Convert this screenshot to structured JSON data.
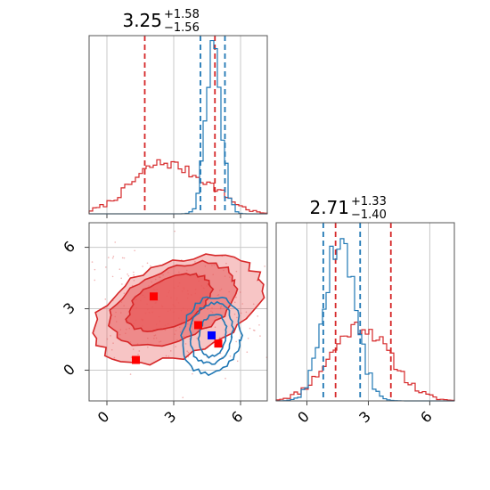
{
  "chart_data": {
    "type": "corner",
    "colors": {
      "red": "#d62728",
      "blue": "#1f77b4",
      "red_fill": "#e8595a",
      "marker_blue": "#0000ff",
      "marker_red": "#ff0000"
    },
    "tick_values": [
      0,
      3,
      6
    ],
    "tick_labels": [
      "0",
      "3",
      "6"
    ],
    "panels": [
      {
        "id": "param1-marginal",
        "title": {
          "value": "3.25",
          "plus": "+1.58",
          "minus": "−1.56"
        },
        "x_range": [
          -0.8,
          7.2
        ],
        "grid": true,
        "series": [
          {
            "color": "red",
            "kind": "histogram",
            "hist": {
              "mode": "mixture",
              "components": [
                {
                  "mu": 2.5,
                  "sigma": 1.4,
                  "weight": 0.78
                },
                {
                  "mu": 4.8,
                  "sigma": 0.9,
                  "weight": 0.22
                }
              ],
              "peak": 0.285,
              "seed": 7
            },
            "quantiles": [
              1.7,
              4.85
            ]
          },
          {
            "color": "blue",
            "kind": "histogram",
            "hist": {
              "mode": "mixture",
              "components": [
                {
                  "mu": 4.8,
                  "sigma": 0.35,
                  "weight": 1.0
                }
              ],
              "peak": 0.9,
              "seed": 3
            },
            "quantiles": [
              4.2,
              5.3
            ]
          }
        ]
      },
      {
        "id": "param2-marginal",
        "title": {
          "value": "2.71",
          "plus": "+1.33",
          "minus": "−1.40"
        },
        "x_range": [
          -1.5,
          7.2
        ],
        "grid": true,
        "series": [
          {
            "color": "red",
            "kind": "histogram",
            "hist": {
              "mode": "mixture",
              "components": [
                {
                  "mu": 2.6,
                  "sigma": 1.45,
                  "weight": 1.0
                }
              ],
              "peak": 0.42,
              "seed": 11
            },
            "quantiles": [
              1.4,
              4.1
            ]
          },
          {
            "color": "blue",
            "kind": "histogram",
            "hist": {
              "mode": "mixture",
              "components": [
                {
                  "mu": 1.6,
                  "sigma": 0.75,
                  "weight": 1.0
                }
              ],
              "peak": 0.92,
              "seed": 5
            },
            "quantiles": [
              0.8,
              2.6
            ]
          }
        ]
      },
      {
        "id": "joint-2d",
        "x_range": [
          -0.8,
          7.2
        ],
        "y_range": [
          -1.5,
          7.2
        ],
        "grid": true,
        "contours": [
          {
            "color": "red",
            "filled": true,
            "levels": [
              {
                "cx": 3.2,
                "cy": 3.0,
                "rx": 3.9,
                "ry": 2.3,
                "angle": -20,
                "fill_opacity": 0.35
              },
              {
                "cx": 3.0,
                "cy": 3.2,
                "rx": 3.0,
                "ry": 1.75,
                "angle": -22,
                "fill_opacity": 0.55
              },
              {
                "cx": 2.8,
                "cy": 3.3,
                "rx": 2.0,
                "ry": 1.15,
                "angle": -25,
                "fill_opacity": 0.75
              }
            ]
          },
          {
            "color": "blue",
            "filled": false,
            "levels": [
              {
                "cx": 4.7,
                "cy": 1.7,
                "rx": 1.3,
                "ry": 1.9,
                "angle": 10,
                "fill_opacity": 0.0
              },
              {
                "cx": 4.7,
                "cy": 1.8,
                "rx": 0.95,
                "ry": 1.5,
                "angle": 10,
                "fill_opacity": 0.0
              },
              {
                "cx": 4.75,
                "cy": 1.7,
                "rx": 0.6,
                "ry": 1.05,
                "angle": 10,
                "fill_opacity": 0.0
              }
            ]
          }
        ],
        "markers": [
          {
            "x": 2.1,
            "y": 3.6,
            "color": "marker_red"
          },
          {
            "x": 1.3,
            "y": 0.5,
            "color": "marker_red"
          },
          {
            "x": 4.1,
            "y": 2.2,
            "color": "marker_red"
          },
          {
            "x": 5.0,
            "y": 1.3,
            "color": "marker_red"
          },
          {
            "x": 4.7,
            "y": 1.7,
            "color": "marker_blue"
          }
        ]
      }
    ]
  }
}
